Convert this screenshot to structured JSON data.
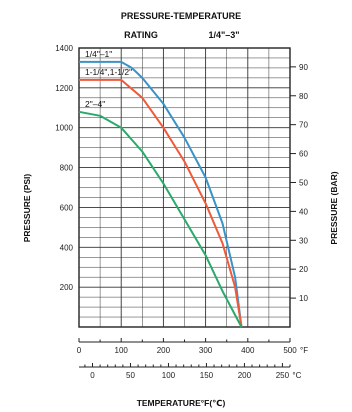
{
  "chart_data": {
    "type": "line",
    "title": "PRESSURE-TEMPERATURE",
    "subtitle_left": "RATING",
    "subtitle_right": "1/4\"–3\"",
    "ylabel_left": "PRESSURE (PSI)",
    "ylabel_right": "PRESSURE (BAR)",
    "xlabel": "TEMPERATURE°F(℃)",
    "x_unit_f": "°F",
    "x_unit_c": "°C",
    "xlim_f": [
      0,
      500
    ],
    "ylim_psi": [
      0,
      1400
    ],
    "x_ticks_f": [
      "0",
      "100",
      "200",
      "300",
      "400",
      "500"
    ],
    "x_ticks_c": [
      "0",
      "50",
      "100",
      "150",
      "200",
      "250"
    ],
    "y_ticks_psi": [
      "200",
      "400",
      "600",
      "800",
      "1000",
      "1200",
      "1400"
    ],
    "y_ticks_bar": [
      "10",
      "20",
      "30",
      "40",
      "50",
      "60",
      "70",
      "80",
      "90"
    ],
    "grid": true,
    "series": [
      {
        "name": "1/4\"–1\"",
        "color": "#3a93c8",
        "x": [
          0,
          100,
          125,
          150,
          200,
          250,
          300,
          340,
          370,
          385
        ],
        "y": [
          1330,
          1330,
          1300,
          1250,
          1120,
          950,
          750,
          520,
          250,
          0
        ]
      },
      {
        "name": "1-1/4\",1-1/2\"",
        "color": "#f05a3a",
        "x": [
          0,
          100,
          150,
          200,
          250,
          300,
          340,
          370,
          385
        ],
        "y": [
          1240,
          1240,
          1150,
          1000,
          830,
          620,
          420,
          200,
          0
        ]
      },
      {
        "name": "2\"–4\"",
        "color": "#2aaa6a",
        "x": [
          0,
          50,
          100,
          150,
          200,
          250,
          300,
          340,
          370,
          385
        ],
        "y": [
          1080,
          1060,
          1000,
          880,
          720,
          540,
          360,
          180,
          60,
          0
        ]
      }
    ]
  }
}
